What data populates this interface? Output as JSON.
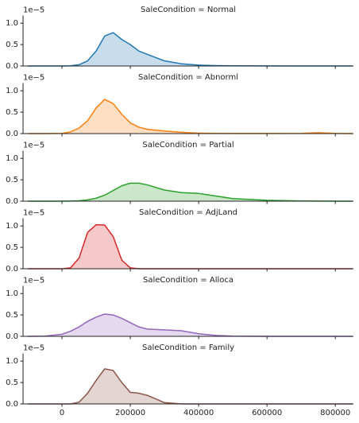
{
  "chart_data": [
    {
      "type": "area",
      "title": "SaleCondition = Normal",
      "offset_label": "1e−5",
      "color": "#1f77b4",
      "x": [
        -100000,
        -50000,
        0,
        25000,
        50000,
        75000,
        100000,
        125000,
        150000,
        175000,
        200000,
        225000,
        250000,
        300000,
        350000,
        400000,
        450000,
        500000,
        600000,
        700000,
        750000,
        800000,
        850000
      ],
      "values": [
        0,
        0,
        0,
        0.005,
        0.03,
        0.12,
        0.35,
        0.7,
        0.78,
        0.62,
        0.5,
        0.35,
        0.27,
        0.12,
        0.05,
        0.02,
        0.01,
        0.005,
        0.002,
        0.001,
        0.001,
        0.001,
        0
      ],
      "xlim": [
        -114000,
        853000
      ],
      "ylim": [
        0,
        1.18
      ],
      "xticks": [
        0,
        200000,
        400000,
        600000,
        800000
      ],
      "yticks": [
        {
          "value": 0,
          "label": "0.0"
        },
        0.5,
        {
          "value": 1,
          "label": "1.0"
        }
      ]
    },
    {
      "type": "area",
      "title": "SaleCondition = Abnorml",
      "offset_label": "1e−5",
      "color": "#ff7f0e",
      "x": [
        -100000,
        -50000,
        0,
        25000,
        50000,
        75000,
        100000,
        125000,
        150000,
        175000,
        200000,
        225000,
        250000,
        300000,
        350000,
        400000,
        450000,
        500000,
        600000,
        700000,
        750000,
        800000,
        850000
      ],
      "values": [
        0,
        0,
        0.005,
        0.04,
        0.13,
        0.3,
        0.6,
        0.8,
        0.7,
        0.45,
        0.25,
        0.15,
        0.1,
        0.06,
        0.03,
        0.01,
        0.005,
        0.002,
        0.002,
        0.005,
        0.02,
        0.005,
        0
      ],
      "xlim": [
        -114000,
        853000
      ],
      "ylim": [
        0,
        1.18
      ],
      "xticks": [
        0,
        200000,
        400000,
        600000,
        800000
      ],
      "yticks": [
        {
          "value": 0,
          "label": "0.0"
        },
        0.5,
        {
          "value": 1,
          "label": "1.0"
        }
      ]
    },
    {
      "type": "area",
      "title": "SaleCondition = Partial",
      "offset_label": "1e−5",
      "color": "#2ca02c",
      "x": [
        -100000,
        -50000,
        0,
        25000,
        50000,
        75000,
        100000,
        125000,
        150000,
        175000,
        200000,
        225000,
        250000,
        300000,
        350000,
        400000,
        450000,
        500000,
        600000,
        700000,
        750000,
        800000,
        850000
      ],
      "values": [
        0,
        0,
        0,
        0.003,
        0.01,
        0.03,
        0.07,
        0.14,
        0.25,
        0.36,
        0.42,
        0.42,
        0.38,
        0.26,
        0.2,
        0.18,
        0.12,
        0.06,
        0.02,
        0.005,
        0.002,
        0.001,
        0
      ],
      "xlim": [
        -114000,
        853000
      ],
      "ylim": [
        0,
        1.18
      ],
      "xticks": [
        0,
        200000,
        400000,
        600000,
        800000
      ],
      "yticks": [
        {
          "value": 0,
          "label": "0.0"
        },
        0.5,
        {
          "value": 1,
          "label": "1.0"
        }
      ]
    },
    {
      "type": "area",
      "title": "SaleCondition = AdjLand",
      "offset_label": "1e−5",
      "color": "#d62728",
      "x": [
        -100000,
        -50000,
        0,
        25000,
        50000,
        75000,
        100000,
        125000,
        150000,
        175000,
        200000,
        225000,
        250000,
        300000,
        350000,
        400000,
        450000,
        500000,
        600000,
        700000,
        750000,
        800000,
        850000
      ],
      "values": [
        0,
        0,
        0,
        0.02,
        0.25,
        0.85,
        1.03,
        1.02,
        0.75,
        0.2,
        0.02,
        0,
        0,
        0,
        0,
        0,
        0,
        0,
        0,
        0,
        0,
        0,
        0
      ],
      "xlim": [
        -114000,
        853000
      ],
      "ylim": [
        0,
        1.18
      ],
      "xticks": [
        0,
        200000,
        400000,
        600000,
        800000
      ],
      "yticks": [
        {
          "value": 0,
          "label": "0.0"
        },
        0.5,
        {
          "value": 1,
          "label": "1.0"
        }
      ]
    },
    {
      "type": "area",
      "title": "SaleCondition = Alloca",
      "offset_label": "1e−5",
      "color": "#9467bd",
      "x": [
        -100000,
        -50000,
        0,
        25000,
        50000,
        75000,
        100000,
        125000,
        150000,
        175000,
        200000,
        225000,
        250000,
        300000,
        350000,
        400000,
        450000,
        500000,
        600000,
        700000,
        750000,
        800000,
        850000
      ],
      "values": [
        0,
        0.005,
        0.05,
        0.12,
        0.22,
        0.35,
        0.45,
        0.52,
        0.5,
        0.42,
        0.32,
        0.22,
        0.17,
        0.15,
        0.13,
        0.06,
        0.02,
        0.005,
        0,
        0,
        0,
        0,
        0
      ],
      "xlim": [
        -114000,
        853000
      ],
      "ylim": [
        0,
        1.18
      ],
      "xticks": [
        0,
        200000,
        400000,
        600000,
        800000
      ],
      "yticks": [
        {
          "value": 0,
          "label": "0.0"
        },
        0.5,
        {
          "value": 1,
          "label": "1.0"
        }
      ]
    },
    {
      "type": "area",
      "title": "SaleCondition = Family",
      "offset_label": "1e−5",
      "color": "#8c564b",
      "x": [
        -100000,
        -50000,
        0,
        25000,
        50000,
        75000,
        100000,
        125000,
        150000,
        175000,
        200000,
        225000,
        250000,
        300000,
        350000,
        400000,
        450000,
        500000,
        600000,
        700000,
        750000,
        800000,
        850000
      ],
      "values": [
        0,
        0,
        0,
        0,
        0.04,
        0.25,
        0.55,
        0.82,
        0.78,
        0.5,
        0.27,
        0.25,
        0.2,
        0.03,
        0,
        0,
        0,
        0,
        0,
        0,
        0,
        0,
        0
      ],
      "xlim": [
        -114000,
        853000
      ],
      "ylim": [
        0,
        1.18
      ],
      "xticks": [
        0,
        200000,
        400000,
        600000,
        800000
      ],
      "yticks": [
        {
          "value": 0,
          "label": "0.0"
        },
        0.5,
        {
          "value": 1,
          "label": "1.0"
        }
      ]
    }
  ]
}
